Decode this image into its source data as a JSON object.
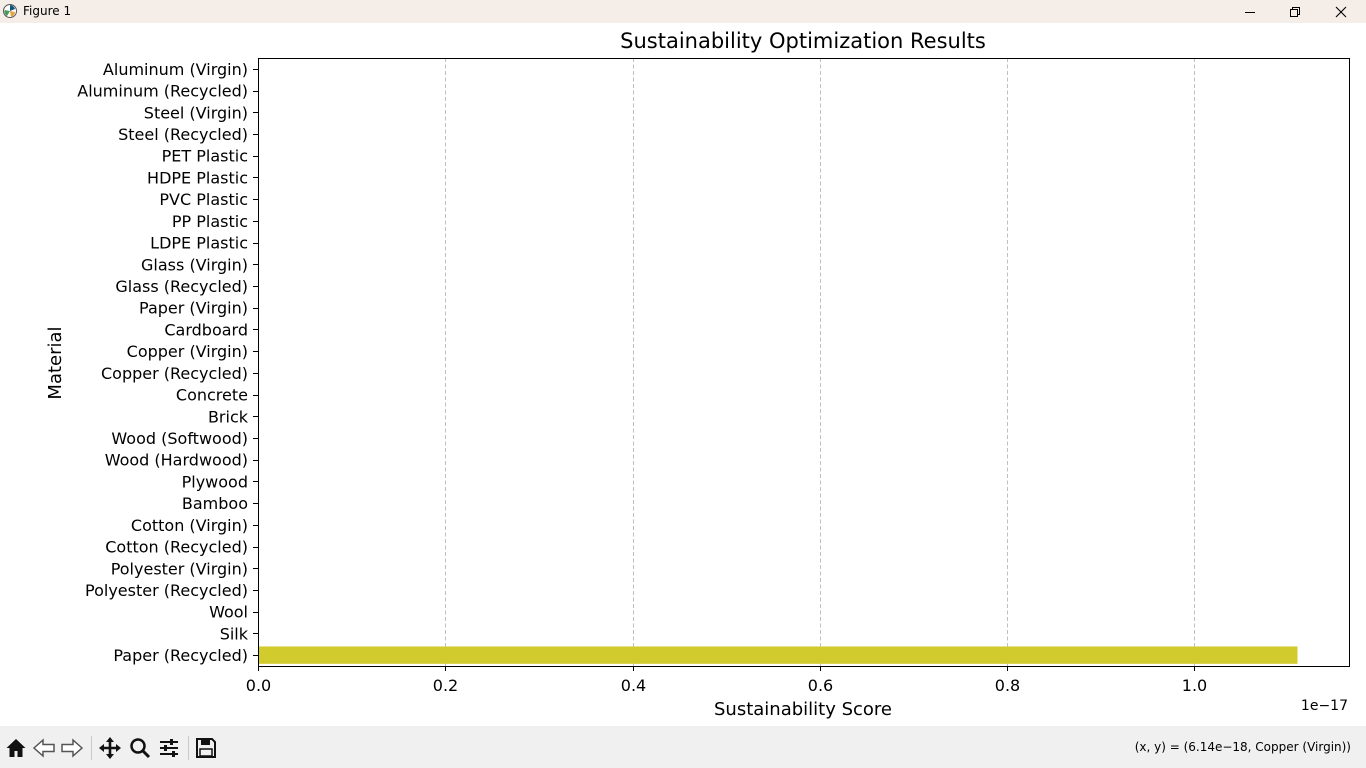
{
  "window": {
    "title": "Figure 1",
    "icons": [
      "matplotlib-icon",
      "minimize-icon",
      "maximize-icon",
      "close-icon"
    ]
  },
  "toolbar": {
    "icons": [
      "home-icon",
      "back-icon",
      "forward-icon",
      "pan-icon",
      "zoom-icon",
      "configure-subplots-icon",
      "save-icon"
    ],
    "coords": "(x, y) = (6.14e−18, Copper (Virgin))"
  },
  "colors": {
    "bar": "#d1cb2e",
    "grid": "#b0b0b0",
    "titlebar": "#f5ede8",
    "toolbar": "#f0f0f0"
  },
  "chart_data": {
    "type": "bar",
    "orientation": "horizontal",
    "title": "Sustainability Optimization Results",
    "xlabel": "Sustainability Score",
    "ylabel": "Material",
    "x_offset_text": "1e−17",
    "xlim": [
      0,
      1.165
    ],
    "xticks": [
      0.0,
      0.2,
      0.4,
      0.6,
      0.8,
      1.0
    ],
    "xtick_labels": [
      "0.0",
      "0.2",
      "0.4",
      "0.6",
      "0.8",
      "1.0"
    ],
    "grid": "x-dashed",
    "categories": [
      "Aluminum (Virgin)",
      "Aluminum (Recycled)",
      "Steel (Virgin)",
      "Steel (Recycled)",
      "PET Plastic",
      "HDPE Plastic",
      "PVC Plastic",
      "PP Plastic",
      "LDPE Plastic",
      "Glass (Virgin)",
      "Glass (Recycled)",
      "Paper (Virgin)",
      "Cardboard",
      "Copper (Virgin)",
      "Copper (Recycled)",
      "Concrete",
      "Brick",
      "Wood (Softwood)",
      "Wood (Hardwood)",
      "Plywood",
      "Bamboo",
      "Cotton (Virgin)",
      "Cotton (Recycled)",
      "Polyester (Virgin)",
      "Polyester (Recycled)",
      "Wool",
      "Silk",
      "Paper (Recycled)"
    ],
    "values": [
      0,
      0,
      0,
      0,
      0,
      0,
      0,
      0,
      0,
      0,
      0,
      0,
      0,
      0,
      0,
      0,
      0,
      0,
      0,
      0,
      0,
      0,
      0,
      0,
      0,
      0,
      0,
      1.11
    ]
  }
}
